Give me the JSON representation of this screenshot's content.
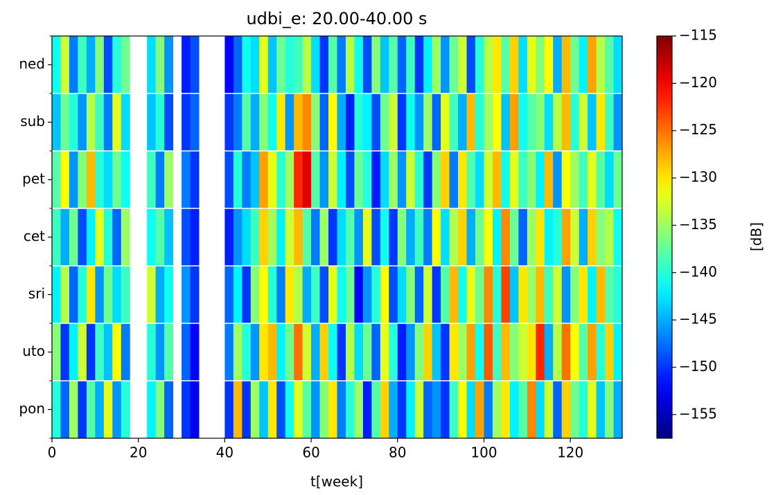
{
  "chart_data": {
    "type": "heatmap",
    "title": "udbi_e: 20.00-40.00 s",
    "xlabel": "t[week]",
    "colorbar_label": "[dB]",
    "categories": [
      "pon",
      "uto",
      "sri",
      "cet",
      "pet",
      "sub",
      "ned"
    ],
    "bins": [
      0,
      2,
      4,
      6,
      8,
      10,
      12,
      14,
      16,
      18,
      20,
      22,
      24,
      26,
      28,
      30,
      32,
      34,
      36,
      38,
      40,
      42,
      44,
      46,
      48,
      50,
      52,
      54,
      56,
      58,
      60,
      62,
      64,
      66,
      68,
      70,
      72,
      74,
      76,
      78,
      80,
      82,
      84,
      86,
      88,
      90,
      92,
      94,
      96,
      98,
      100,
      102,
      104,
      106,
      108,
      110,
      112,
      114,
      116,
      118,
      120,
      122,
      124,
      126,
      128,
      130,
      132
    ],
    "values": [
      [
        -140,
        -148,
        -135,
        -150,
        -138,
        -145,
        -132,
        -146,
        -140,
        null,
        null,
        -142,
        -136,
        -148,
        null,
        -150,
        -153,
        null,
        null,
        null,
        -150,
        -128,
        -150,
        -135,
        -144,
        -130,
        -149,
        -141,
        -132,
        -138,
        -146,
        -136,
        -130,
        -147,
        -140,
        -135,
        -151,
        -138,
        -129,
        -145,
        -150,
        -142,
        -133,
        -148,
        -146,
        -150,
        -139,
        -131,
        -143,
        -127,
        -147,
        -135,
        -130,
        -142,
        -138,
        -126,
        -143,
        -133,
        -148,
        -129,
        -137,
        -140,
        -132,
        -144,
        -136,
        -145
      ],
      [
        -136,
        -150,
        -142,
        -133,
        -150,
        -139,
        -144,
        -131,
        -147,
        null,
        null,
        -140,
        -146,
        -138,
        null,
        -148,
        -152,
        null,
        null,
        null,
        -147,
        -135,
        -140,
        -146,
        -130,
        -128,
        -142,
        -137,
        -125,
        -133,
        -145,
        -129,
        -141,
        -150,
        -134,
        -143,
        -137,
        -148,
        -132,
        -140,
        -151,
        -146,
        -136,
        -129,
        -144,
        -150,
        -130,
        -135,
        -127,
        -141,
        -124,
        -139,
        -128,
        -136,
        -133,
        -130,
        -122,
        -145,
        -134,
        -125,
        -131,
        -138,
        -127,
        -140,
        -129,
        -142
      ],
      [
        -142,
        -134,
        -148,
        -140,
        -130,
        -146,
        -137,
        -143,
        -139,
        null,
        null,
        -133,
        -145,
        -141,
        null,
        -146,
        -150,
        null,
        null,
        null,
        -148,
        -142,
        -150,
        -136,
        -131,
        -140,
        -147,
        -130,
        -134,
        -145,
        -139,
        -149,
        -132,
        -141,
        -137,
        -152,
        -146,
        -140,
        -131,
        -149,
        -143,
        -136,
        -148,
        -133,
        -150,
        -138,
        -128,
        -141,
        -132,
        -137,
        -126,
        -140,
        -123,
        -144,
        -130,
        -135,
        -128,
        -139,
        -133,
        -146,
        -136,
        -130,
        -142,
        -128,
        -138,
        -140
      ],
      [
        -139,
        -145,
        -137,
        -149,
        -142,
        -132,
        -140,
        -148,
        -135,
        null,
        null,
        -141,
        -138,
        -144,
        null,
        -149,
        -151,
        null,
        null,
        null,
        -151,
        -146,
        -143,
        -139,
        -129,
        -135,
        -142,
        -133,
        -128,
        -138,
        -147,
        -135,
        -150,
        -143,
        -138,
        -146,
        -132,
        -149,
        -141,
        -150,
        -136,
        -145,
        -139,
        -147,
        -131,
        -143,
        -134,
        -129,
        -145,
        -137,
        -131,
        -142,
        -126,
        -137,
        -148,
        -135,
        -130,
        -142,
        -140,
        -127,
        -133,
        -145,
        -129,
        -136,
        -134,
        -141
      ],
      [
        -138,
        -131,
        -146,
        -136,
        -128,
        -140,
        -143,
        -137,
        -141,
        null,
        null,
        -139,
        -147,
        -135,
        null,
        -147,
        -150,
        null,
        null,
        null,
        -149,
        -140,
        -147,
        -144,
        -127,
        -132,
        -140,
        -135,
        -122,
        -119,
        -138,
        -146,
        -133,
        -142,
        -149,
        -137,
        -140,
        -151,
        -143,
        -135,
        -146,
        -133,
        -140,
        -150,
        -136,
        -129,
        -147,
        -130,
        -138,
        -143,
        -133,
        -128,
        -141,
        -132,
        -139,
        -136,
        -142,
        -128,
        -146,
        -131,
        -135,
        -139,
        -132,
        -138,
        -143,
        -137
      ],
      [
        -144,
        -137,
        -140,
        -146,
        -134,
        -139,
        -147,
        -132,
        -143,
        null,
        null,
        -144,
        -140,
        -149,
        null,
        -150,
        -148,
        null,
        null,
        null,
        -150,
        -147,
        -138,
        -145,
        -136,
        -141,
        -130,
        -146,
        -128,
        -126,
        -136,
        -148,
        -131,
        -145,
        -151,
        -140,
        -142,
        -149,
        -137,
        -133,
        -150,
        -141,
        -146,
        -135,
        -148,
        -132,
        -139,
        -145,
        -128,
        -140,
        -135,
        -131,
        -144,
        -127,
        -141,
        -138,
        -136,
        -143,
        -134,
        -128,
        -140,
        -133,
        -144,
        -130,
        -139,
        -146
      ],
      [
        -141,
        -133,
        -147,
        -139,
        -145,
        -136,
        -149,
        -140,
        -137,
        null,
        null,
        -143,
        -136,
        -146,
        null,
        -151,
        -149,
        null,
        null,
        null,
        -152,
        -148,
        -141,
        -143,
        -132,
        -144,
        -137,
        -140,
        -139,
        -134,
        -143,
        -150,
        -138,
        -147,
        -134,
        -141,
        -149,
        -136,
        -144,
        -138,
        -148,
        -139,
        -150,
        -142,
        -135,
        -146,
        -137,
        -133,
        -149,
        -140,
        -134,
        -130,
        -138,
        -129,
        -143,
        -132,
        -136,
        -131,
        -145,
        -128,
        -137,
        -142,
        -127,
        -134,
        -138,
        -143
      ]
    ],
    "xlim": [
      0,
      132
    ],
    "xticks": [
      0,
      20,
      40,
      60,
      80,
      100,
      120
    ],
    "colormap": "jet",
    "clim": [
      -157.5,
      -115
    ],
    "cticks": [
      {
        "value": -115,
        "label": "−115"
      },
      {
        "value": -120,
        "label": "−120"
      },
      {
        "value": -125,
        "label": "−125"
      },
      {
        "value": -130,
        "label": "−130"
      },
      {
        "value": -135,
        "label": "−135"
      },
      {
        "value": -140,
        "label": "−140"
      },
      {
        "value": -145,
        "label": "−145"
      },
      {
        "value": -150,
        "label": "−150"
      },
      {
        "value": -155,
        "label": "−155"
      }
    ]
  }
}
